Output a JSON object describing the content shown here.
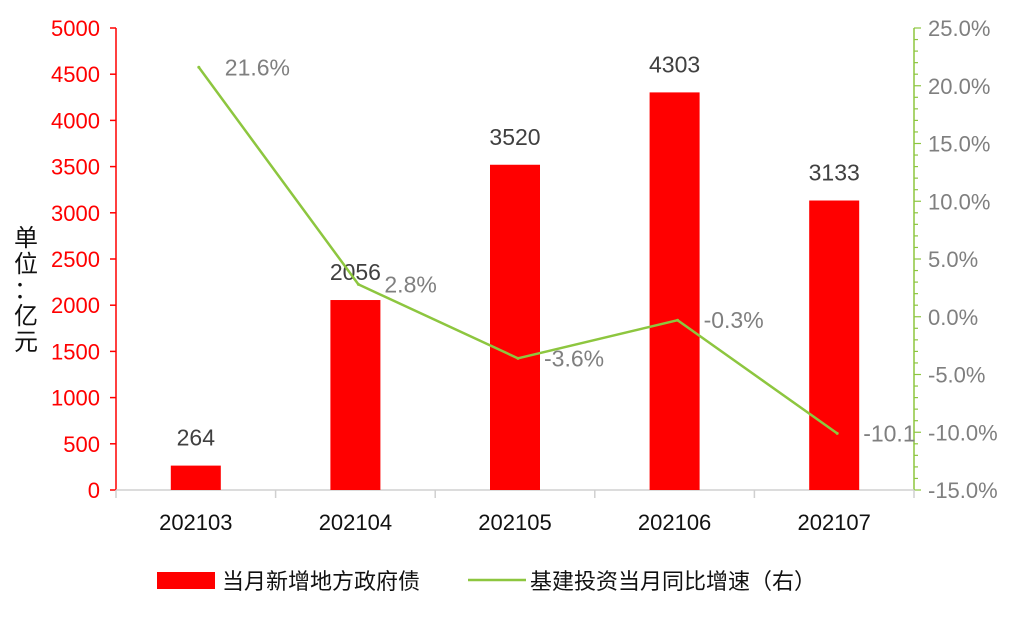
{
  "chart_data": {
    "type": "bar+line",
    "categories": [
      "202103",
      "202104",
      "202105",
      "202106",
      "202107"
    ],
    "series": [
      {
        "name": "当月新增地方政府债",
        "type": "bar",
        "axis": "left",
        "values": [
          264,
          2056,
          3520,
          4303,
          3133
        ],
        "labels": [
          "264",
          "2056",
          "3520",
          "4303",
          "3133"
        ],
        "color": "#ff0000"
      },
      {
        "name": "基建投资当月同比增速（右）",
        "type": "line",
        "axis": "right",
        "values": [
          21.6,
          2.8,
          -3.6,
          -0.3,
          -10.1
        ],
        "labels": [
          "21.6%",
          "2.8%",
          "-3.6%",
          "-0.3%",
          "-10.1%"
        ],
        "color": "#8dc63f"
      }
    ],
    "left_axis": {
      "label_chars": [
        "单",
        "位",
        "：",
        "亿",
        "元"
      ],
      "ylim": [
        0,
        5000
      ],
      "ticks": [
        0,
        500,
        1000,
        1500,
        2000,
        2500,
        3000,
        3500,
        4000,
        4500,
        5000
      ],
      "tick_labels": [
        "0",
        "500",
        "1000",
        "1500",
        "2000",
        "2500",
        "3000",
        "3500",
        "4000",
        "4500",
        "5000"
      ],
      "color": "#ff0000"
    },
    "right_axis": {
      "ylim": [
        -15,
        25
      ],
      "ticks": [
        -15,
        -10,
        -5,
        0,
        5,
        10,
        15,
        20,
        25
      ],
      "tick_labels": [
        "-15.0%",
        "-10.0%",
        "-5.0%",
        "0.0%",
        "5.0%",
        "10.0%",
        "15.0%",
        "20.0%",
        "25.0%"
      ],
      "color": "#8dc63f",
      "label_color": "#7f7f7f"
    },
    "legend": {
      "position": "bottom-center",
      "items": [
        "当月新增地方政府债",
        "基建投资当月同比增速（右）"
      ]
    },
    "grid": false
  }
}
